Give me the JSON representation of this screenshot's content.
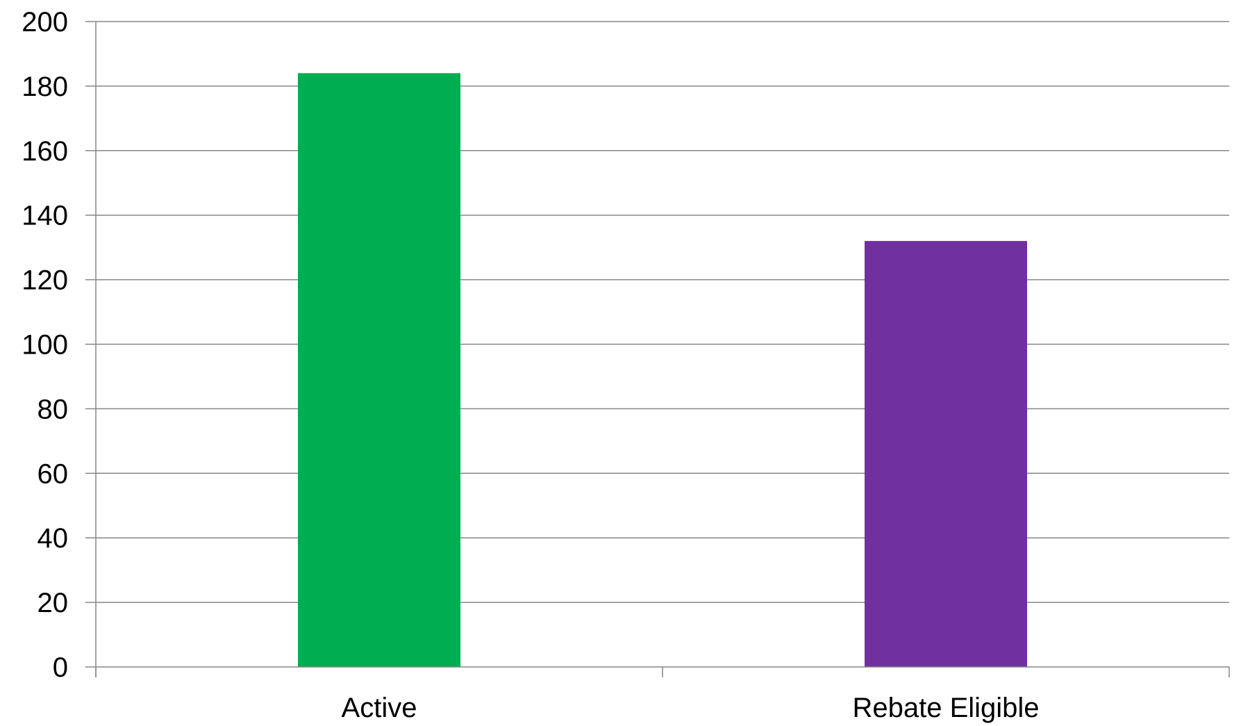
{
  "chart_data": {
    "type": "bar",
    "title": "",
    "xlabel": "",
    "ylabel": "",
    "categories": [
      "Active",
      "Rebate Eligible"
    ],
    "values": [
      184,
      132
    ],
    "bar_colors": [
      "#00AD50",
      "#7030A0"
    ],
    "ylim": [
      0,
      200
    ],
    "yticks": [
      0,
      20,
      40,
      60,
      80,
      100,
      120,
      140,
      160,
      180,
      200
    ],
    "grid": true,
    "grid_color": "#868686",
    "legend": "none"
  }
}
